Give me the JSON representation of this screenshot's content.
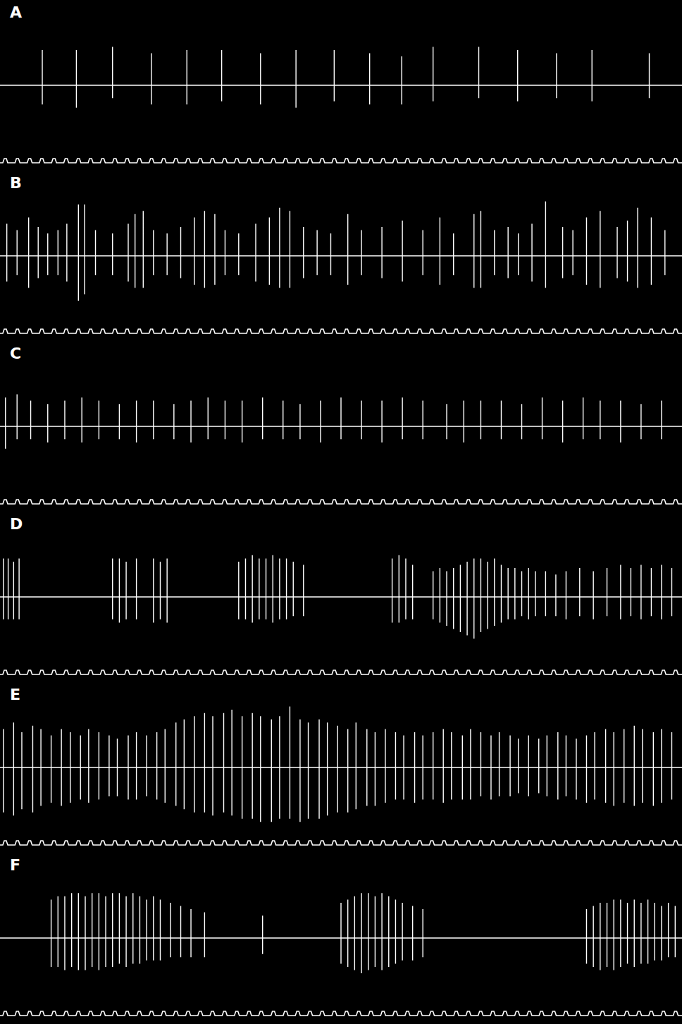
{
  "chart_data": [
    {
      "type": "line",
      "title": "A",
      "color": "#ffffff",
      "tick_labels": false,
      "xlim": [
        0,
        100
      ],
      "ylim": [
        -1,
        1
      ],
      "baseline": 0,
      "x": [
        6.2,
        11.2,
        16.5,
        22.2,
        27.4,
        32.5,
        38.2,
        43.4,
        49.0,
        54.2,
        58.9,
        63.5,
        70.2,
        75.9,
        81.6,
        86.8,
        95.2
      ],
      "values": [
        0.55,
        0.55,
        0.6,
        0.5,
        0.55,
        0.55,
        0.5,
        0.55,
        0.55,
        0.5,
        0.45,
        0.6,
        0.6,
        0.55,
        0.5,
        0.55,
        0.5
      ],
      "troughs": [
        -0.3,
        -0.35,
        -0.2,
        -0.3,
        -0.3,
        -0.25,
        -0.3,
        -0.35,
        -0.25,
        -0.3,
        -0.3,
        -0.25,
        -0.2,
        -0.25,
        -0.2,
        -0.25,
        -0.2
      ]
    },
    {
      "type": "line",
      "title": "B",
      "color": "#ffffff",
      "tick_labels": false,
      "xlim": [
        0,
        100
      ],
      "ylim": [
        -1,
        1
      ],
      "baseline": 0,
      "x": [
        1.0,
        2.5,
        4.2,
        5.6,
        7.0,
        8.5,
        9.8,
        11.5,
        12.4,
        14.0,
        16.5,
        18.8,
        19.8,
        21.0,
        22.5,
        24.5,
        26.5,
        28.5,
        30.0,
        31.5,
        33.0,
        35.0,
        37.5,
        39.5,
        41.0,
        42.5,
        44.5,
        46.5,
        48.5,
        51.0,
        53.0,
        56.0,
        59.0,
        62.0,
        64.5,
        66.5,
        69.5,
        70.5,
        72.5,
        74.5,
        76.0,
        78.0,
        80.0,
        82.5,
        84.0,
        86.0,
        88.0,
        90.5,
        92.0,
        93.5,
        95.5,
        97.5
      ],
      "values": [
        0.5,
        0.4,
        0.6,
        0.45,
        0.35,
        0.4,
        0.5,
        0.8,
        0.8,
        0.4,
        0.35,
        0.5,
        0.65,
        0.7,
        0.4,
        0.35,
        0.45,
        0.6,
        0.7,
        0.65,
        0.4,
        0.35,
        0.5,
        0.6,
        0.75,
        0.7,
        0.45,
        0.4,
        0.35,
        0.65,
        0.4,
        0.45,
        0.55,
        0.4,
        0.6,
        0.35,
        0.65,
        0.7,
        0.4,
        0.45,
        0.35,
        0.5,
        0.85,
        0.45,
        0.4,
        0.6,
        0.7,
        0.45,
        0.55,
        0.75,
        0.6,
        0.4
      ],
      "troughs": [
        -0.4,
        -0.3,
        -0.5,
        -0.35,
        -0.3,
        -0.3,
        -0.4,
        -0.7,
        -0.6,
        -0.3,
        -0.3,
        -0.4,
        -0.5,
        -0.5,
        -0.3,
        -0.3,
        -0.35,
        -0.45,
        -0.5,
        -0.45,
        -0.3,
        -0.3,
        -0.4,
        -0.45,
        -0.5,
        -0.5,
        -0.35,
        -0.3,
        -0.3,
        -0.45,
        -0.3,
        -0.35,
        -0.4,
        -0.3,
        -0.45,
        -0.3,
        -0.5,
        -0.5,
        -0.3,
        -0.35,
        -0.3,
        -0.4,
        -0.5,
        -0.35,
        -0.3,
        -0.45,
        -0.5,
        -0.35,
        -0.4,
        -0.5,
        -0.45,
        -0.3
      ]
    },
    {
      "type": "line",
      "title": "C",
      "color": "#ffffff",
      "tick_labels": false,
      "xlim": [
        0,
        100
      ],
      "ylim": [
        -1,
        1
      ],
      "baseline": 0,
      "x": [
        0.8,
        2.5,
        4.5,
        7.0,
        9.5,
        12.0,
        14.5,
        17.5,
        20.0,
        22.5,
        25.5,
        28.0,
        30.5,
        33.0,
        35.5,
        38.5,
        41.5,
        44.0,
        47.0,
        50.0,
        53.0,
        56.0,
        59.0,
        62.0,
        65.5,
        68.0,
        70.5,
        73.5,
        76.5,
        79.5,
        82.5,
        85.5,
        88.0,
        91.0,
        94.0,
        97.0
      ],
      "values": [
        0.45,
        0.5,
        0.4,
        0.35,
        0.4,
        0.45,
        0.4,
        0.35,
        0.4,
        0.4,
        0.35,
        0.4,
        0.45,
        0.4,
        0.4,
        0.45,
        0.4,
        0.35,
        0.4,
        0.45,
        0.4,
        0.4,
        0.45,
        0.4,
        0.35,
        0.4,
        0.4,
        0.4,
        0.35,
        0.45,
        0.4,
        0.45,
        0.4,
        0.4,
        0.35,
        0.4
      ],
      "troughs": [
        -0.35,
        -0.2,
        -0.2,
        -0.25,
        -0.2,
        -0.25,
        -0.2,
        -0.2,
        -0.25,
        -0.2,
        -0.2,
        -0.25,
        -0.2,
        -0.2,
        -0.25,
        -0.2,
        -0.2,
        -0.2,
        -0.25,
        -0.2,
        -0.2,
        -0.25,
        -0.2,
        -0.2,
        -0.2,
        -0.25,
        -0.2,
        -0.2,
        -0.2,
        -0.2,
        -0.25,
        -0.2,
        -0.2,
        -0.25,
        -0.2,
        -0.2
      ]
    },
    {
      "type": "line",
      "title": "D",
      "color": "#ffffff",
      "tick_labels": false,
      "xlim": [
        0,
        100
      ],
      "ylim": [
        -1,
        1
      ],
      "baseline": 0,
      "x": [
        0.5,
        1.2,
        2.0,
        2.8,
        16.5,
        17.5,
        18.5,
        20.0,
        22.5,
        23.5,
        24.5,
        35.0,
        36.0,
        37.0,
        38.0,
        39.0,
        40.0,
        41.0,
        42.0,
        43.0,
        44.5,
        57.5,
        58.5,
        59.5,
        60.5,
        63.5,
        64.5,
        65.5,
        66.5,
        67.5,
        68.5,
        69.5,
        70.5,
        71.5,
        72.5,
        73.5,
        74.5,
        75.5,
        76.5,
        77.5,
        78.5,
        80.0,
        81.5,
        83.0,
        85.0,
        87.0,
        89.0,
        91.0,
        92.5,
        94.0,
        95.5,
        97.0,
        98.5
      ],
      "values": [
        0.6,
        0.6,
        0.55,
        0.6,
        0.6,
        0.6,
        0.55,
        0.6,
        0.6,
        0.55,
        0.6,
        0.55,
        0.6,
        0.65,
        0.6,
        0.6,
        0.65,
        0.6,
        0.6,
        0.55,
        0.5,
        0.6,
        0.65,
        0.6,
        0.5,
        0.4,
        0.45,
        0.4,
        0.45,
        0.5,
        0.55,
        0.6,
        0.6,
        0.55,
        0.6,
        0.5,
        0.45,
        0.45,
        0.4,
        0.45,
        0.4,
        0.4,
        0.35,
        0.4,
        0.45,
        0.4,
        0.45,
        0.5,
        0.45,
        0.5,
        0.45,
        0.5,
        0.45
      ],
      "troughs": [
        -0.35,
        -0.35,
        -0.35,
        -0.35,
        -0.35,
        -0.4,
        -0.35,
        -0.35,
        -0.4,
        -0.35,
        -0.4,
        -0.35,
        -0.35,
        -0.4,
        -0.35,
        -0.35,
        -0.4,
        -0.35,
        -0.35,
        -0.3,
        -0.3,
        -0.4,
        -0.4,
        -0.35,
        -0.35,
        -0.35,
        -0.4,
        -0.45,
        -0.5,
        -0.55,
        -0.6,
        -0.65,
        -0.55,
        -0.5,
        -0.45,
        -0.4,
        -0.35,
        -0.35,
        -0.3,
        -0.35,
        -0.3,
        -0.3,
        -0.3,
        -0.35,
        -0.3,
        -0.35,
        -0.3,
        -0.35,
        -0.3,
        -0.35,
        -0.3,
        -0.35,
        -0.3
      ]
    },
    {
      "type": "line",
      "title": "E",
      "color": "#ffffff",
      "tick_labels": false,
      "xlim": [
        0,
        100
      ],
      "ylim": [
        -1,
        1
      ],
      "baseline": 0,
      "x": [
        0.5,
        2.0,
        3.2,
        4.8,
        6.0,
        7.5,
        9.0,
        10.3,
        11.8,
        13.0,
        14.5,
        16.0,
        17.2,
        18.8,
        20.0,
        21.5,
        23.0,
        24.2,
        25.8,
        27.0,
        28.5,
        30.0,
        31.2,
        32.8,
        34.0,
        35.5,
        37.0,
        38.2,
        39.8,
        41.0,
        42.5,
        44.0,
        45.2,
        46.8,
        48.0,
        49.5,
        51.0,
        52.2,
        53.8,
        55.0,
        56.5,
        58.0,
        59.2,
        60.8,
        62.0,
        63.5,
        65.0,
        66.2,
        67.8,
        69.0,
        70.5,
        72.0,
        73.2,
        74.8,
        76.0,
        77.5,
        79.0,
        80.2,
        81.8,
        83.0,
        84.5,
        86.0,
        87.2,
        88.8,
        90.0,
        91.5,
        93.0,
        94.2,
        95.8,
        97.0,
        98.5
      ],
      "values": [
        0.6,
        0.7,
        0.55,
        0.65,
        0.6,
        0.5,
        0.6,
        0.55,
        0.5,
        0.6,
        0.55,
        0.5,
        0.45,
        0.5,
        0.55,
        0.5,
        0.55,
        0.6,
        0.7,
        0.75,
        0.8,
        0.85,
        0.8,
        0.85,
        0.9,
        0.8,
        0.85,
        0.8,
        0.75,
        0.8,
        0.95,
        0.75,
        0.7,
        0.75,
        0.7,
        0.65,
        0.6,
        0.7,
        0.6,
        0.55,
        0.6,
        0.55,
        0.5,
        0.55,
        0.5,
        0.55,
        0.6,
        0.55,
        0.5,
        0.6,
        0.55,
        0.5,
        0.55,
        0.5,
        0.45,
        0.5,
        0.45,
        0.5,
        0.55,
        0.5,
        0.45,
        0.5,
        0.55,
        0.6,
        0.55,
        0.6,
        0.65,
        0.6,
        0.55,
        0.6,
        0.55
      ],
      "troughs": [
        -0.7,
        -0.75,
        -0.65,
        -0.7,
        -0.6,
        -0.55,
        -0.6,
        -0.55,
        -0.5,
        -0.55,
        -0.5,
        -0.45,
        -0.45,
        -0.5,
        -0.5,
        -0.45,
        -0.5,
        -0.55,
        -0.6,
        -0.65,
        -0.7,
        -0.7,
        -0.75,
        -0.7,
        -0.75,
        -0.8,
        -0.8,
        -0.85,
        -0.85,
        -0.8,
        -0.8,
        -0.85,
        -0.8,
        -0.8,
        -0.75,
        -0.7,
        -0.7,
        -0.65,
        -0.6,
        -0.6,
        -0.55,
        -0.5,
        -0.5,
        -0.55,
        -0.5,
        -0.5,
        -0.55,
        -0.5,
        -0.5,
        -0.5,
        -0.45,
        -0.5,
        -0.45,
        -0.45,
        -0.4,
        -0.45,
        -0.4,
        -0.45,
        -0.5,
        -0.45,
        -0.5,
        -0.55,
        -0.5,
        -0.55,
        -0.6,
        -0.55,
        -0.6,
        -0.55,
        -0.6,
        -0.55,
        -0.5
      ]
    },
    {
      "type": "line",
      "title": "F",
      "color": "#ffffff",
      "tick_labels": false,
      "xlim": [
        0,
        100
      ],
      "ylim": [
        -1,
        1
      ],
      "baseline": 0,
      "x": [
        7.5,
        8.5,
        9.5,
        10.5,
        11.5,
        12.5,
        13.5,
        14.5,
        15.5,
        16.5,
        17.5,
        18.5,
        19.5,
        20.5,
        21.5,
        22.5,
        23.5,
        25.0,
        26.5,
        28.0,
        30.0,
        38.5,
        50.0,
        51.0,
        52.0,
        53.0,
        54.0,
        55.0,
        56.0,
        57.0,
        58.0,
        59.0,
        60.5,
        62.0,
        86.0,
        87.0,
        88.0,
        89.0,
        90.0,
        91.0,
        92.0,
        93.0,
        94.0,
        95.0,
        96.0,
        97.0,
        98.0,
        99.0
      ],
      "values": [
        0.6,
        0.65,
        0.65,
        0.7,
        0.7,
        0.65,
        0.7,
        0.7,
        0.65,
        0.7,
        0.7,
        0.65,
        0.7,
        0.65,
        0.6,
        0.65,
        0.6,
        0.55,
        0.5,
        0.45,
        0.4,
        0.35,
        0.55,
        0.6,
        0.65,
        0.7,
        0.7,
        0.65,
        0.7,
        0.65,
        0.6,
        0.55,
        0.5,
        0.45,
        0.45,
        0.5,
        0.55,
        0.55,
        0.6,
        0.6,
        0.55,
        0.6,
        0.55,
        0.6,
        0.55,
        0.5,
        0.55,
        0.5
      ],
      "troughs": [
        -0.45,
        -0.45,
        -0.5,
        -0.45,
        -0.5,
        -0.5,
        -0.45,
        -0.5,
        -0.45,
        -0.45,
        -0.4,
        -0.45,
        -0.4,
        -0.4,
        -0.35,
        -0.35,
        -0.35,
        -0.3,
        -0.3,
        -0.3,
        -0.3,
        -0.25,
        -0.4,
        -0.45,
        -0.5,
        -0.55,
        -0.5,
        -0.45,
        -0.5,
        -0.45,
        -0.4,
        -0.35,
        -0.35,
        -0.3,
        -0.4,
        -0.45,
        -0.5,
        -0.45,
        -0.5,
        -0.45,
        -0.4,
        -0.45,
        -0.4,
        -0.4,
        -0.35,
        -0.35,
        -0.3,
        -0.3
      ]
    }
  ]
}
